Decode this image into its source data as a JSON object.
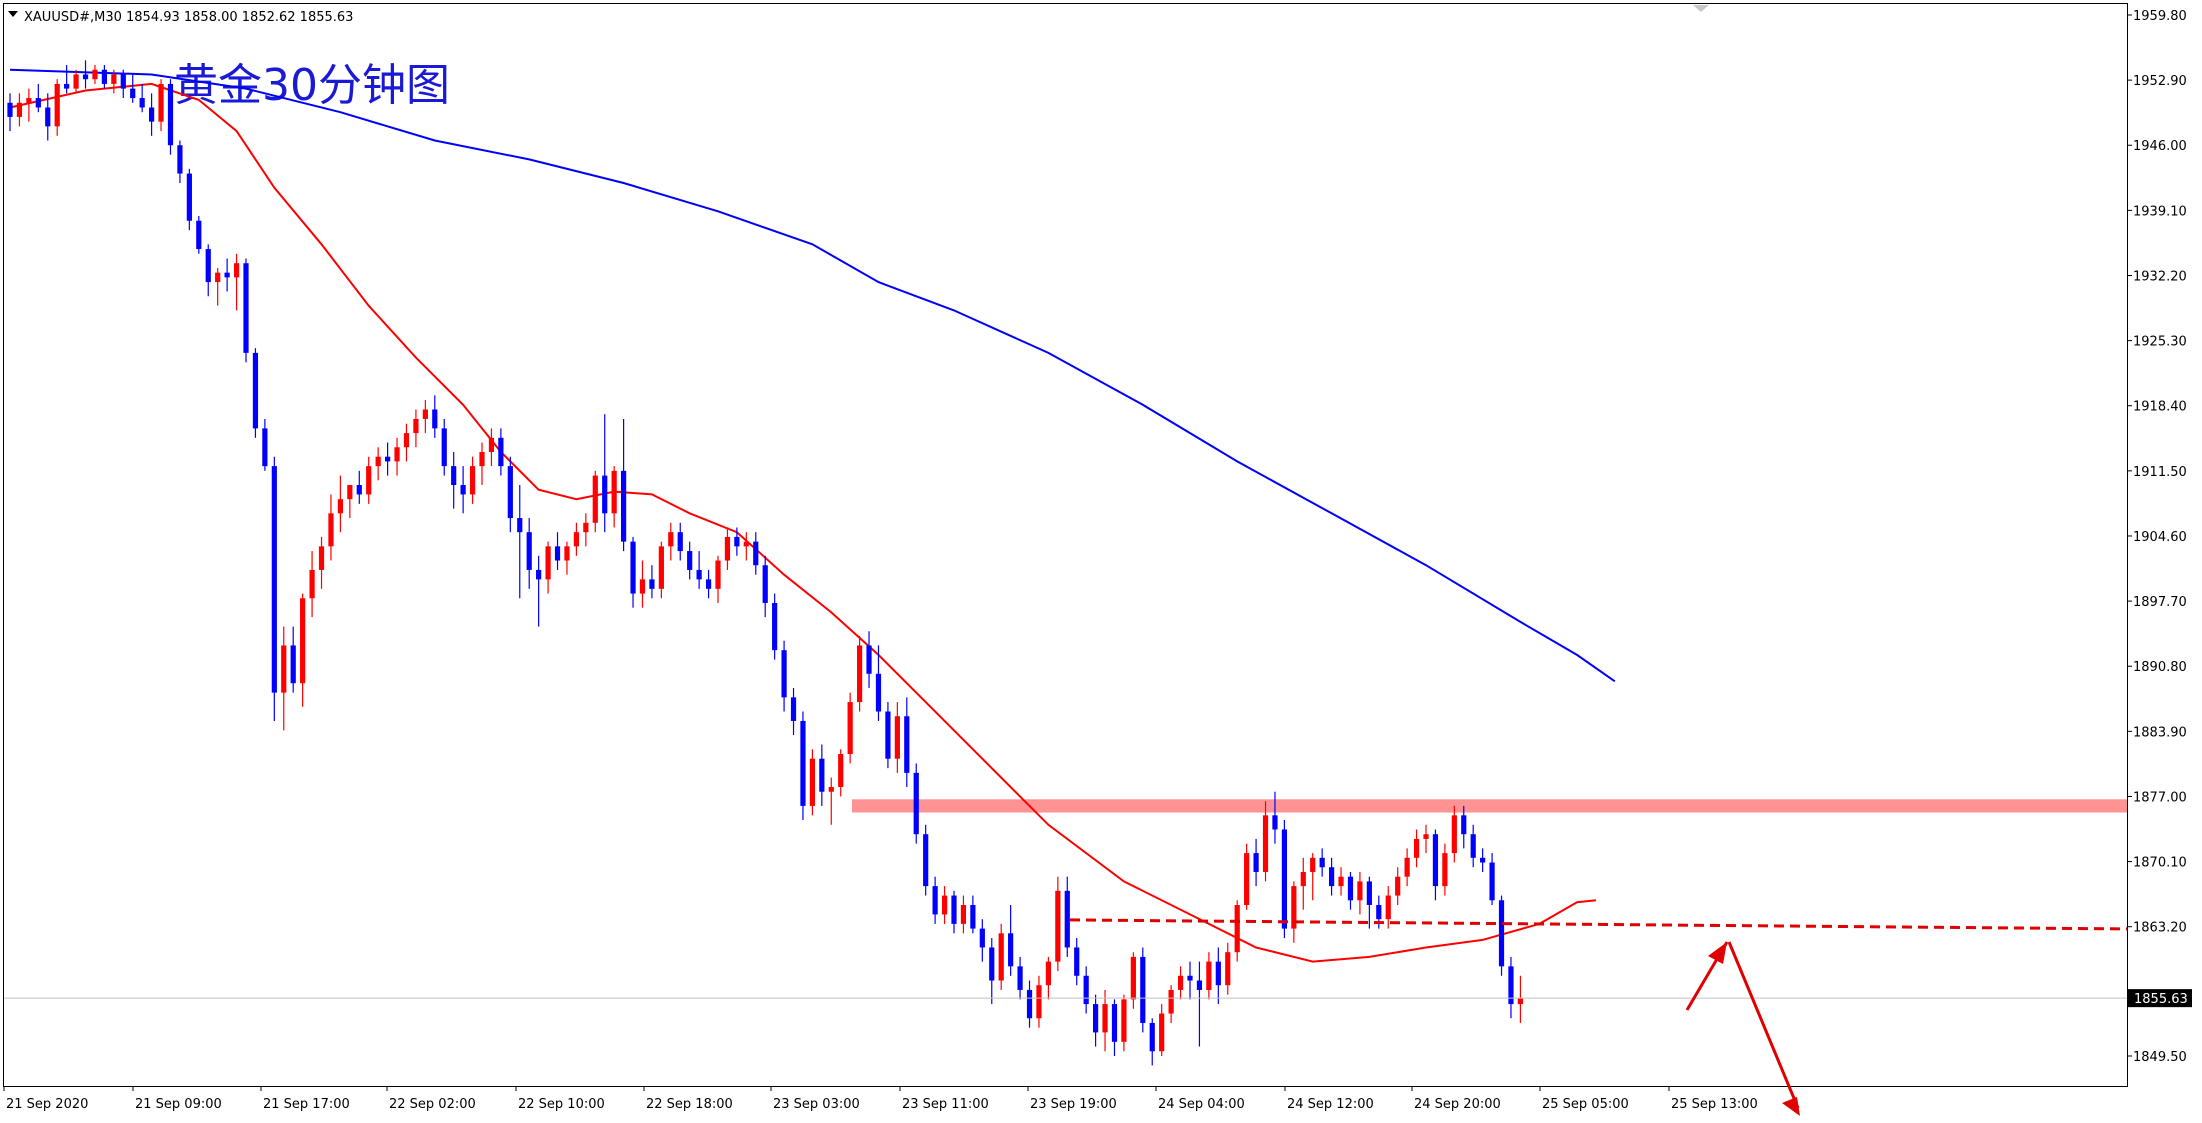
{
  "header": {
    "symbol": "XAUUSD#,M30",
    "ohlc": "1854.93 1858.00 1852.62 1855.63",
    "title": "黄金30分钟图"
  },
  "price_label": "1855.63",
  "chart_data": {
    "type": "candlestick",
    "title": "黄金30分钟图",
    "ylim": [
      1844,
      1962
    ],
    "y_ticks": [
      "1959.80",
      "1952.90",
      "1946.00",
      "1939.10",
      "1932.20",
      "1925.30",
      "1918.40",
      "1911.50",
      "1904.60",
      "1897.70",
      "1890.80",
      "1883.90",
      "1877.00",
      "1870.10",
      "1863.20",
      "1849.50"
    ],
    "x_ticks": [
      "21 Sep 2020",
      "21 Sep 09:00",
      "21 Sep 17:00",
      "22 Sep 02:00",
      "22 Sep 10:00",
      "22 Sep 18:00",
      "23 Sep 03:00",
      "23 Sep 11:00",
      "23 Sep 19:00",
      "24 Sep 04:00",
      "24 Sep 12:00",
      "24 Sep 20:00",
      "25 Sep 05:00",
      "25 Sep 13:00"
    ],
    "last_price": 1855.63,
    "colors": {
      "up": "#ff0000",
      "down": "#0000ff",
      "ma_fast": "#ff0000",
      "ma_slow": "#0000ff",
      "zone": "#ff8080"
    },
    "resistance_zone": [
      1875.3,
      1876.7
    ],
    "support_line": 1863.6,
    "candles": [
      [
        1950.5,
        1951.5,
        1947.5,
        1949.0
      ],
      [
        1949.0,
        1951.5,
        1948.0,
        1950.5
      ],
      [
        1950.5,
        1952.0,
        1948.5,
        1951.0
      ],
      [
        1951.0,
        1952.5,
        1949.5,
        1950.0
      ],
      [
        1950.0,
        1951.5,
        1946.5,
        1948.0
      ],
      [
        1948.0,
        1953.0,
        1947.0,
        1952.5
      ],
      [
        1952.5,
        1954.5,
        1951.5,
        1952.0
      ],
      [
        1952.0,
        1954.0,
        1951.5,
        1953.5
      ],
      [
        1953.5,
        1955.0,
        1952.0,
        1953.0
      ],
      [
        1953.0,
        1954.5,
        1952.5,
        1954.0
      ],
      [
        1954.0,
        1954.5,
        1952.0,
        1952.5
      ],
      [
        1952.5,
        1954.0,
        1951.5,
        1953.5
      ],
      [
        1953.5,
        1954.0,
        1951.0,
        1952.0
      ],
      [
        1952.0,
        1953.5,
        1950.5,
        1951.0
      ],
      [
        1951.0,
        1952.5,
        1949.5,
        1950.0
      ],
      [
        1950.0,
        1951.5,
        1947.0,
        1948.5
      ],
      [
        1948.5,
        1953.0,
        1947.5,
        1952.5
      ],
      [
        1952.5,
        1953.0,
        1945.0,
        1946.0
      ],
      [
        1946.0,
        1946.5,
        1942.0,
        1943.0
      ],
      [
        1943.0,
        1943.5,
        1937.0,
        1938.0
      ],
      [
        1938.0,
        1938.5,
        1934.5,
        1935.0
      ],
      [
        1935.0,
        1935.5,
        1930.0,
        1931.5
      ],
      [
        1931.5,
        1933.0,
        1929.0,
        1932.5
      ],
      [
        1932.5,
        1934.0,
        1930.5,
        1932.0
      ],
      [
        1932.0,
        1934.5,
        1928.5,
        1933.5
      ],
      [
        1933.5,
        1934.0,
        1923.0,
        1924.0
      ],
      [
        1924.0,
        1924.5,
        1915.0,
        1916.0
      ],
      [
        1916.0,
        1917.0,
        1911.5,
        1912.0
      ],
      [
        1912.0,
        1913.0,
        1885.0,
        1888.0
      ],
      [
        1888.0,
        1895.0,
        1884.0,
        1893.0
      ],
      [
        1893.0,
        1895.0,
        1888.0,
        1889.0
      ],
      [
        1889.0,
        1898.5,
        1886.5,
        1898.0
      ],
      [
        1898.0,
        1903.0,
        1896.0,
        1901.0
      ],
      [
        1901.0,
        1904.5,
        1899.0,
        1903.5
      ],
      [
        1903.5,
        1909.0,
        1902.0,
        1907.0
      ],
      [
        1907.0,
        1911.0,
        1905.0,
        1908.5
      ],
      [
        1908.5,
        1910.0,
        1906.5,
        1910.0
      ],
      [
        1910.0,
        1911.5,
        1908.0,
        1909.0
      ],
      [
        1909.0,
        1913.0,
        1908.0,
        1912.0
      ],
      [
        1912.0,
        1914.0,
        1910.5,
        1913.0
      ],
      [
        1913.0,
        1914.5,
        1911.0,
        1912.5
      ],
      [
        1912.5,
        1915.0,
        1911.0,
        1914.0
      ],
      [
        1914.0,
        1916.5,
        1912.5,
        1915.5
      ],
      [
        1915.5,
        1918.0,
        1914.0,
        1917.0
      ],
      [
        1917.0,
        1919.0,
        1915.5,
        1918.0
      ],
      [
        1918.0,
        1919.5,
        1915.0,
        1916.0
      ],
      [
        1916.0,
        1917.0,
        1911.0,
        1912.0
      ],
      [
        1912.0,
        1913.5,
        1907.5,
        1910.0
      ],
      [
        1910.0,
        1912.0,
        1907.0,
        1909.0
      ],
      [
        1909.0,
        1913.0,
        1908.0,
        1912.0
      ],
      [
        1912.0,
        1914.5,
        1910.0,
        1913.5
      ],
      [
        1913.5,
        1916.0,
        1912.0,
        1915.0
      ],
      [
        1915.0,
        1916.0,
        1911.0,
        1912.0
      ],
      [
        1912.0,
        1913.0,
        1905.0,
        1906.5
      ],
      [
        1906.5,
        1910.0,
        1898.0,
        1905.0
      ],
      [
        1905.0,
        1906.5,
        1899.0,
        1901.0
      ],
      [
        1901.0,
        1902.5,
        1895.0,
        1900.0
      ],
      [
        1900.0,
        1904.0,
        1898.5,
        1903.5
      ],
      [
        1903.5,
        1905.0,
        1901.0,
        1902.0
      ],
      [
        1902.0,
        1904.0,
        1900.5,
        1903.5
      ],
      [
        1903.5,
        1906.0,
        1902.5,
        1905.0
      ],
      [
        1905.0,
        1907.0,
        1903.5,
        1906.0
      ],
      [
        1906.0,
        1911.5,
        1905.0,
        1911.0
      ],
      [
        1911.0,
        1917.5,
        1905.0,
        1907.0
      ],
      [
        1907.0,
        1912.0,
        1905.5,
        1911.5
      ],
      [
        1911.5,
        1917.0,
        1903.0,
        1904.0
      ],
      [
        1904.0,
        1904.5,
        1897.0,
        1898.5
      ],
      [
        1898.5,
        1902.0,
        1897.0,
        1900.0
      ],
      [
        1900.0,
        1901.5,
        1898.0,
        1899.0
      ],
      [
        1899.0,
        1904.0,
        1898.0,
        1903.5
      ],
      [
        1903.5,
        1906.0,
        1902.0,
        1905.0
      ],
      [
        1905.0,
        1906.0,
        1902.0,
        1903.0
      ],
      [
        1903.0,
        1904.0,
        1900.0,
        1901.0
      ],
      [
        1901.0,
        1903.0,
        1899.0,
        1900.0
      ],
      [
        1900.0,
        1901.0,
        1898.0,
        1899.0
      ],
      [
        1899.0,
        1902.5,
        1897.5,
        1902.0
      ],
      [
        1902.0,
        1905.5,
        1901.0,
        1904.5
      ],
      [
        1904.5,
        1905.5,
        1902.5,
        1903.5
      ],
      [
        1903.5,
        1905.0,
        1902.0,
        1904.0
      ],
      [
        1904.0,
        1905.0,
        1900.5,
        1901.5
      ],
      [
        1901.5,
        1902.5,
        1896.0,
        1897.5
      ],
      [
        1897.5,
        1898.5,
        1891.5,
        1892.5
      ],
      [
        1892.5,
        1893.5,
        1886.0,
        1887.5
      ],
      [
        1887.5,
        1888.5,
        1883.5,
        1885.0
      ],
      [
        1885.0,
        1886.0,
        1874.5,
        1876.0
      ],
      [
        1876.0,
        1882.0,
        1875.0,
        1881.0
      ],
      [
        1881.0,
        1882.5,
        1876.0,
        1877.5
      ],
      [
        1877.5,
        1879.0,
        1874.0,
        1878.0
      ],
      [
        1878.0,
        1882.0,
        1877.0,
        1881.5
      ],
      [
        1881.5,
        1888.0,
        1880.5,
        1887.0
      ],
      [
        1887.0,
        1894.0,
        1886.0,
        1893.0
      ],
      [
        1893.0,
        1894.5,
        1888.5,
        1890.0
      ],
      [
        1890.0,
        1893.0,
        1885.0,
        1886.0
      ],
      [
        1886.0,
        1887.0,
        1880.0,
        1881.0
      ],
      [
        1881.0,
        1887.0,
        1879.5,
        1885.5
      ],
      [
        1885.5,
        1887.5,
        1878.0,
        1879.5
      ],
      [
        1879.5,
        1880.5,
        1872.0,
        1873.0
      ],
      [
        1873.0,
        1874.0,
        1866.5,
        1867.5
      ],
      [
        1867.5,
        1868.5,
        1863.5,
        1864.5
      ],
      [
        1864.5,
        1867.5,
        1863.5,
        1866.5
      ],
      [
        1866.5,
        1867.0,
        1862.5,
        1863.5
      ],
      [
        1863.5,
        1866.5,
        1862.5,
        1865.5
      ],
      [
        1865.5,
        1866.5,
        1862.5,
        1863.0
      ],
      [
        1863.0,
        1864.0,
        1859.5,
        1861.0
      ],
      [
        1861.0,
        1862.0,
        1855.0,
        1857.5
      ],
      [
        1857.5,
        1863.5,
        1856.5,
        1862.5
      ],
      [
        1862.5,
        1865.5,
        1858.0,
        1859.0
      ],
      [
        1859.0,
        1860.0,
        1855.5,
        1856.5
      ],
      [
        1856.5,
        1857.5,
        1852.5,
        1853.5
      ],
      [
        1853.5,
        1858.0,
        1852.5,
        1857.0
      ],
      [
        1857.0,
        1860.0,
        1855.5,
        1859.5
      ],
      [
        1859.5,
        1868.5,
        1858.5,
        1867.0
      ],
      [
        1867.0,
        1868.5,
        1860.0,
        1861.0
      ],
      [
        1861.0,
        1862.0,
        1857.0,
        1858.0
      ],
      [
        1858.0,
        1859.0,
        1854.0,
        1855.0
      ],
      [
        1855.0,
        1856.0,
        1850.5,
        1852.0
      ],
      [
        1852.0,
        1856.5,
        1850.0,
        1855.0
      ],
      [
        1855.0,
        1855.5,
        1849.5,
        1851.0
      ],
      [
        1851.0,
        1856.0,
        1850.0,
        1855.5
      ],
      [
        1855.5,
        1860.5,
        1854.5,
        1860.0
      ],
      [
        1860.0,
        1861.0,
        1852.0,
        1853.0
      ],
      [
        1853.0,
        1853.5,
        1848.5,
        1850.0
      ],
      [
        1850.0,
        1855.0,
        1849.5,
        1854.0
      ],
      [
        1854.0,
        1857.0,
        1853.0,
        1856.5
      ],
      [
        1856.5,
        1859.0,
        1855.5,
        1858.0
      ],
      [
        1858.0,
        1859.5,
        1855.5,
        1857.5
      ],
      [
        1857.5,
        1859.5,
        1850.5,
        1856.5
      ],
      [
        1856.5,
        1860.5,
        1855.5,
        1859.5
      ],
      [
        1859.5,
        1861.0,
        1855.0,
        1857.0
      ],
      [
        1857.0,
        1861.5,
        1856.0,
        1860.5
      ],
      [
        1860.5,
        1866.0,
        1859.5,
        1865.5
      ],
      [
        1865.5,
        1872.0,
        1865.0,
        1871.0
      ],
      [
        1871.0,
        1872.5,
        1867.5,
        1869.0
      ],
      [
        1869.0,
        1876.5,
        1868.0,
        1875.0
      ],
      [
        1875.0,
        1877.5,
        1872.0,
        1873.5
      ],
      [
        1873.5,
        1874.5,
        1862.0,
        1863.0
      ],
      [
        1863.0,
        1868.0,
        1861.5,
        1867.5
      ],
      [
        1867.5,
        1870.5,
        1865.0,
        1869.0
      ],
      [
        1869.0,
        1871.0,
        1866.0,
        1870.5
      ],
      [
        1870.5,
        1871.5,
        1868.5,
        1869.5
      ],
      [
        1869.5,
        1870.5,
        1866.5,
        1867.5
      ],
      [
        1867.5,
        1869.5,
        1866.5,
        1868.5
      ],
      [
        1868.5,
        1869.0,
        1865.0,
        1866.0
      ],
      [
        1866.0,
        1869.0,
        1864.5,
        1868.0
      ],
      [
        1868.0,
        1868.5,
        1863.0,
        1865.5
      ],
      [
        1865.5,
        1866.5,
        1863.0,
        1864.0
      ],
      [
        1864.0,
        1867.5,
        1863.0,
        1866.5
      ],
      [
        1866.5,
        1869.5,
        1865.5,
        1868.5
      ],
      [
        1868.5,
        1871.5,
        1867.5,
        1870.5
      ],
      [
        1870.5,
        1873.5,
        1869.5,
        1872.5
      ],
      [
        1872.5,
        1874.0,
        1871.0,
        1873.0
      ],
      [
        1873.0,
        1873.5,
        1866.0,
        1867.5
      ],
      [
        1867.5,
        1872.0,
        1866.5,
        1871.0
      ],
      [
        1871.0,
        1876.0,
        1870.0,
        1875.0
      ],
      [
        1875.0,
        1876.0,
        1871.5,
        1873.0
      ],
      [
        1873.0,
        1874.0,
        1869.5,
        1870.5
      ],
      [
        1870.5,
        1871.5,
        1869.0,
        1870.0
      ],
      [
        1870.0,
        1871.0,
        1865.5,
        1866.0
      ],
      [
        1866.0,
        1866.5,
        1858.0,
        1859.0
      ],
      [
        1859.0,
        1860.0,
        1853.5,
        1855.0
      ],
      [
        1855.0,
        1858.0,
        1853.0,
        1855.6
      ]
    ],
    "ma_fast": [
      [
        0,
        1950.0
      ],
      [
        8,
        1951.8
      ],
      [
        15,
        1952.5
      ],
      [
        20,
        1950.8
      ],
      [
        24,
        1947.5
      ],
      [
        28,
        1941.5
      ],
      [
        33,
        1935.5
      ],
      [
        38,
        1929.0
      ],
      [
        43,
        1923.5
      ],
      [
        48,
        1918.5
      ],
      [
        52,
        1913.5
      ],
      [
        56,
        1909.5
      ],
      [
        60,
        1908.5
      ],
      [
        64,
        1909.3
      ],
      [
        68,
        1909.0
      ],
      [
        72,
        1907.0
      ],
      [
        77,
        1905.0
      ],
      [
        82,
        1900.5
      ],
      [
        87,
        1896.5
      ],
      [
        92,
        1892.0
      ],
      [
        97,
        1887.0
      ],
      [
        103,
        1881.0
      ],
      [
        110,
        1874.0
      ],
      [
        118,
        1868.0
      ],
      [
        125,
        1864.5
      ],
      [
        132,
        1861.0
      ],
      [
        138,
        1859.5
      ],
      [
        144,
        1860.0
      ],
      [
        150,
        1861.0
      ],
      [
        156,
        1861.8
      ],
      [
        162,
        1863.5
      ],
      [
        166,
        1865.8
      ],
      [
        168,
        1866.0
      ]
    ],
    "ma_slow": [
      [
        0,
        1954.0
      ],
      [
        15,
        1953.5
      ],
      [
        25,
        1952.0
      ],
      [
        35,
        1949.5
      ],
      [
        45,
        1946.5
      ],
      [
        55,
        1944.5
      ],
      [
        65,
        1942.0
      ],
      [
        75,
        1939.0
      ],
      [
        85,
        1935.5
      ],
      [
        92,
        1931.5
      ],
      [
        100,
        1928.5
      ],
      [
        110,
        1924.0
      ],
      [
        120,
        1918.5
      ],
      [
        130,
        1912.5
      ],
      [
        140,
        1907.0
      ],
      [
        150,
        1901.5
      ],
      [
        160,
        1895.5
      ],
      [
        166,
        1892.0
      ],
      [
        170,
        1889.2
      ]
    ]
  }
}
